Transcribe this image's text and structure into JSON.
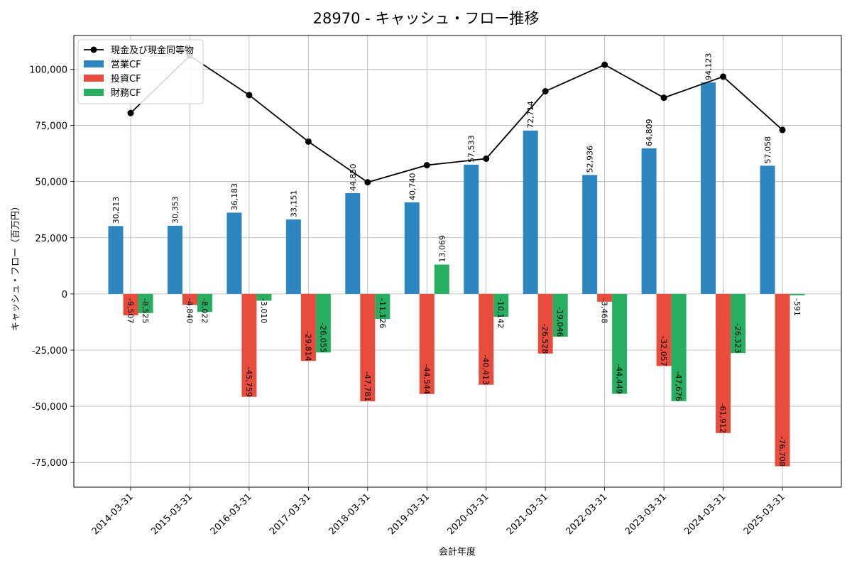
{
  "chart_data": {
    "type": "bar",
    "title": "28970 - キャッシュ・フロー推移",
    "xlabel": "会計年度",
    "ylabel": "キャッシュ・フロー（百万円）",
    "categories": [
      "2014-03-31",
      "2015-03-31",
      "2016-03-31",
      "2017-03-31",
      "2018-03-31",
      "2019-03-31",
      "2020-03-31",
      "2021-03-31",
      "2022-03-31",
      "2023-03-31",
      "2024-03-31",
      "2025-03-31"
    ],
    "ylim": [
      -86000,
      115000
    ],
    "yticks": [
      -75000,
      -50000,
      -25000,
      0,
      25000,
      50000,
      75000,
      100000
    ],
    "ytick_labels": [
      "-75,000",
      "-50,000",
      "-25,000",
      "0",
      "25,000",
      "50,000",
      "75,000",
      "100,000"
    ],
    "grid": true,
    "legend_position": "top-left",
    "series": [
      {
        "name": "営業CF",
        "kind": "bar",
        "color": "#2e86c1",
        "values": [
          30213,
          30353,
          36183,
          33151,
          44850,
          40740,
          57533,
          72714,
          52936,
          64809,
          94123,
          57058
        ],
        "labels": [
          "30,213",
          "30,353",
          "36,183",
          "33,151",
          "44,850",
          "40,740",
          "57,533",
          "72,714",
          "52,936",
          "64,809",
          "94,123",
          "57,058"
        ]
      },
      {
        "name": "投資CF",
        "kind": "bar",
        "color": "#e74c3c",
        "values": [
          -9507,
          -4840,
          -45759,
          -29814,
          -47781,
          -44544,
          -40413,
          -26528,
          -3468,
          -32057,
          -61912,
          -76708
        ],
        "labels": [
          "-9,507",
          "-4,840",
          "-45,759",
          "-29,814",
          "-47,781",
          "-44,544",
          "-40,413",
          "-26,528",
          "-3,468",
          "-32,057",
          "-61,912",
          "-76,708"
        ]
      },
      {
        "name": "財務CF",
        "kind": "bar",
        "color": "#27ae60",
        "values": [
          -8525,
          -8022,
          -3010,
          -26055,
          -11126,
          13069,
          -10142,
          -19046,
          -44449,
          -47676,
          -26323,
          -591
        ],
        "labels": [
          "-8,525",
          "-8,022",
          "-3,010",
          "-26,055",
          "-11,126",
          "13,069",
          "-10,142",
          "-19,046",
          "-44,449",
          "-47,676",
          "-26,323",
          "-591"
        ]
      },
      {
        "name": "現金及び現金同等物",
        "kind": "line",
        "color": "#000000",
        "values": [
          80500,
          106000,
          88500,
          67800,
          49700,
          57300,
          60200,
          90200,
          102000,
          87300,
          96700,
          73000
        ]
      }
    ]
  }
}
